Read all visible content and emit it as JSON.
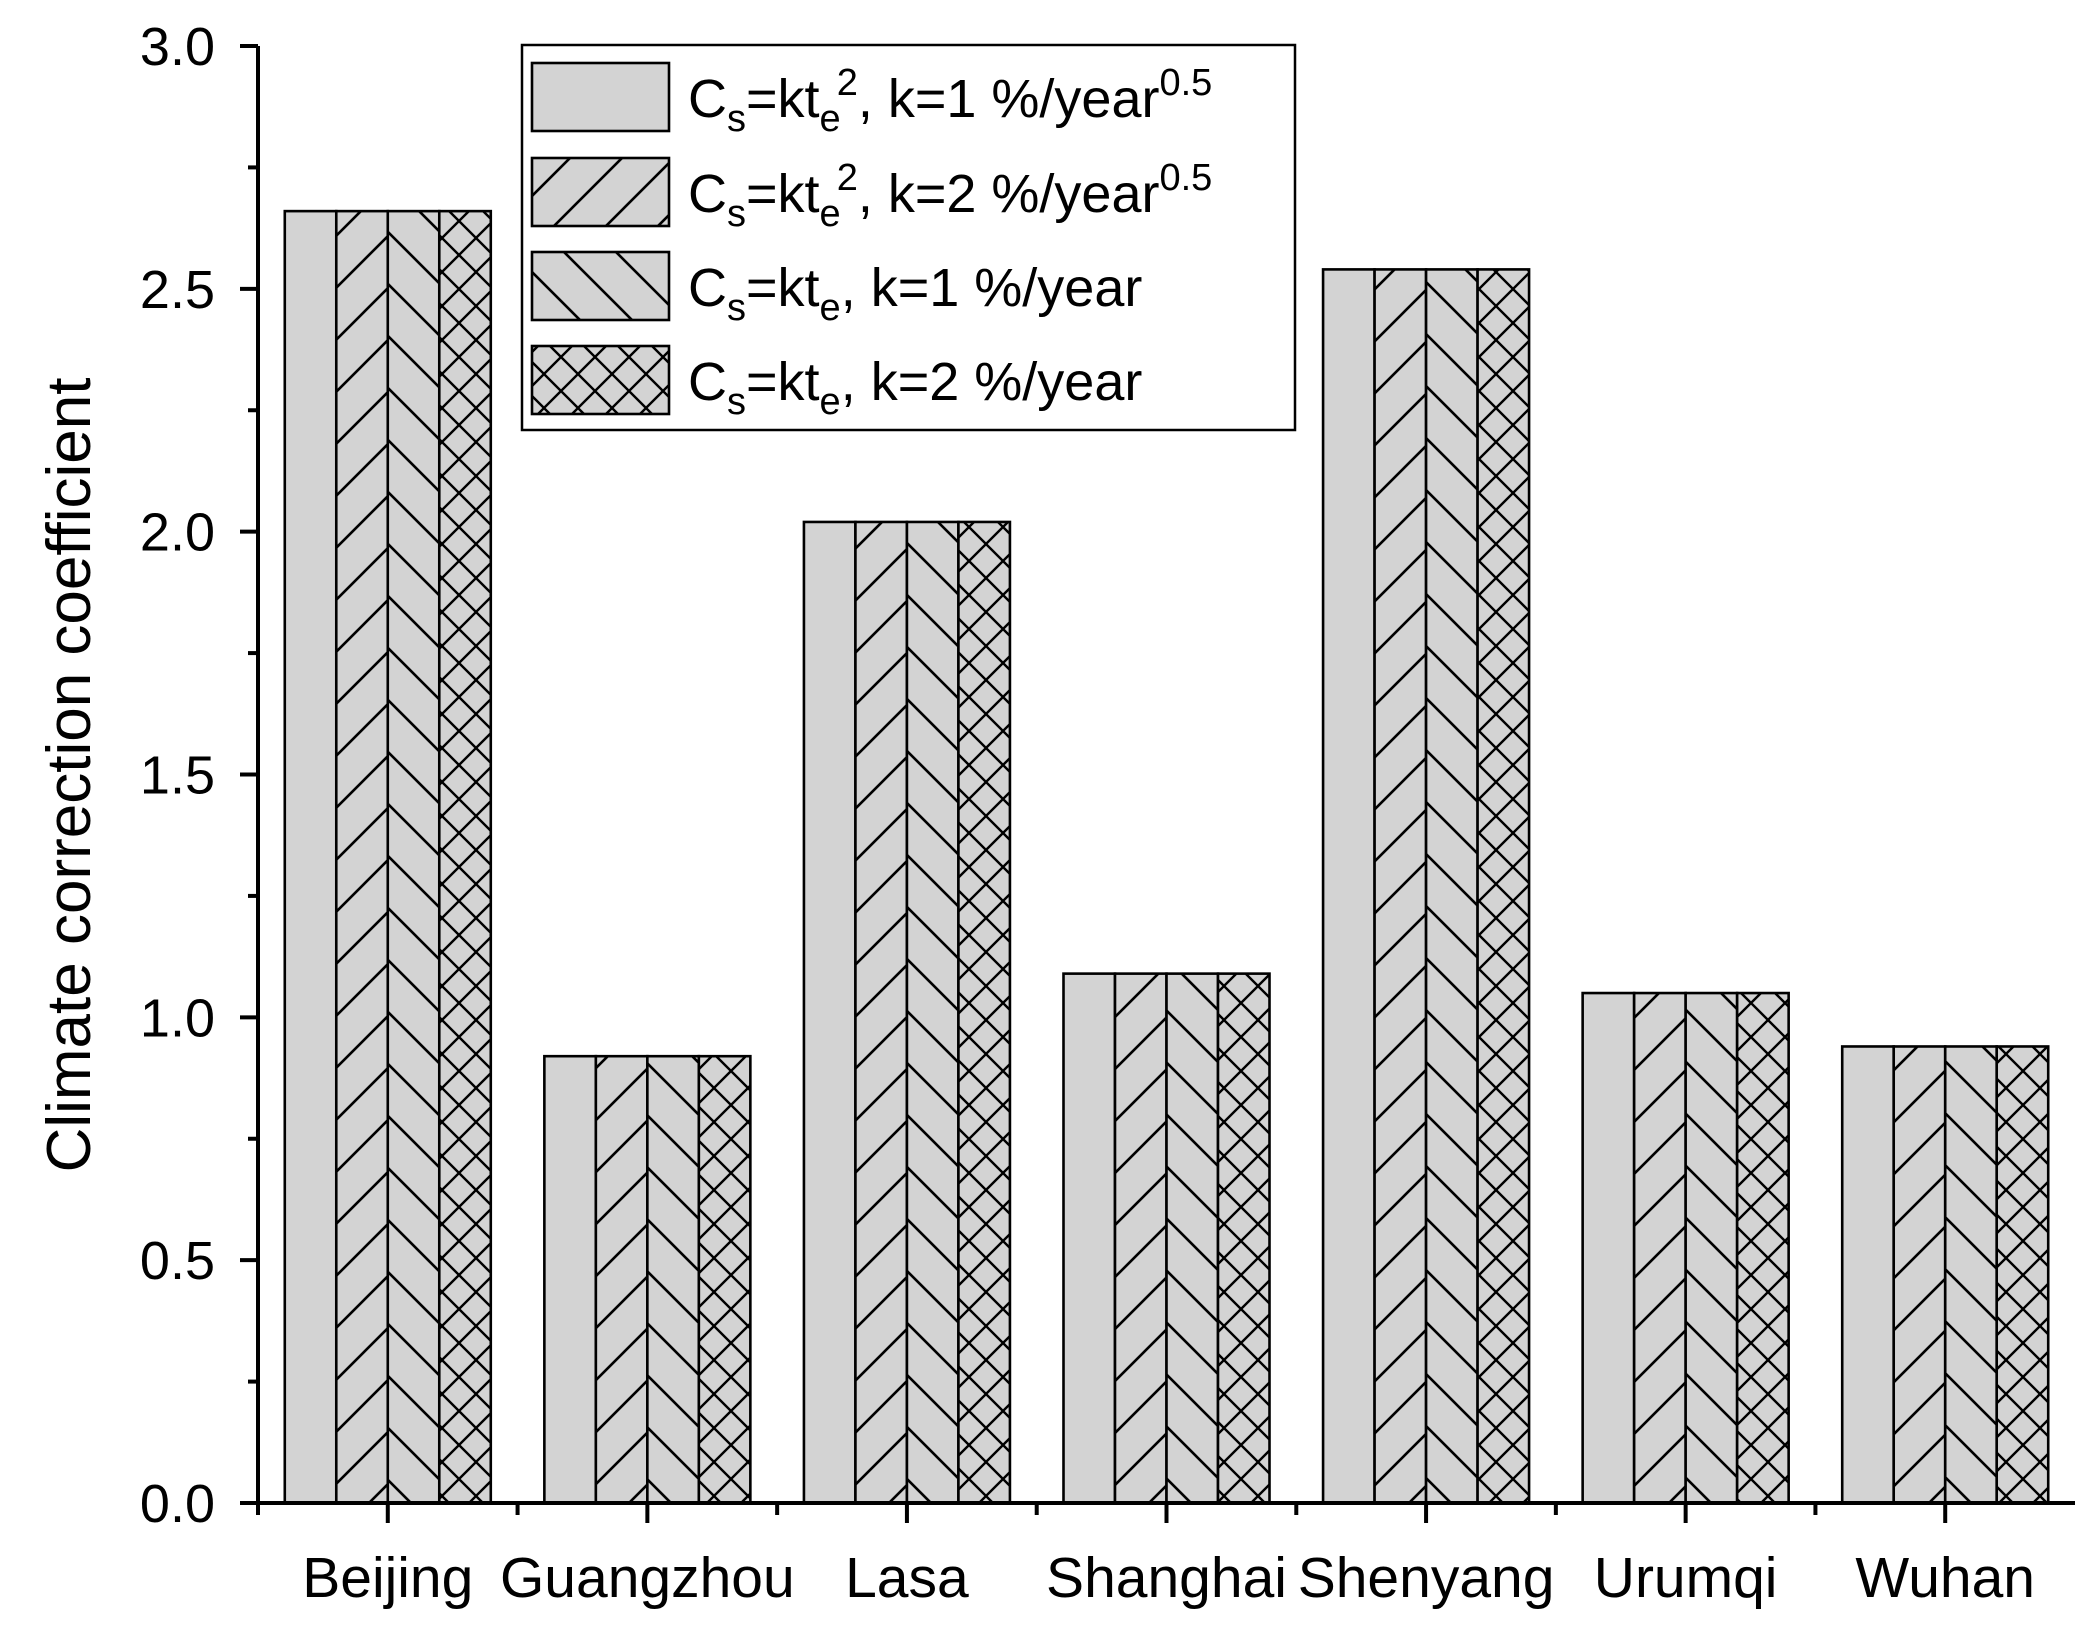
{
  "chart_data": {
    "type": "bar",
    "title": "",
    "xlabel": "",
    "ylabel": "Climate correction coefficient",
    "ylim": [
      0,
      3.0
    ],
    "yticks": [
      "0.0",
      "0.5",
      "1.0",
      "1.5",
      "2.0",
      "2.5",
      "3.0"
    ],
    "categories": [
      "Beijing",
      "Guangzhou",
      "Lasa",
      "Shanghai",
      "Shenyang",
      "Urumqi",
      "Wuhan"
    ],
    "series": [
      {
        "name": "Cs=kte2, k=1 %/year0.5",
        "values": [
          2.66,
          0.92,
          2.02,
          1.09,
          2.54,
          1.05,
          0.94
        ],
        "pattern": "solid"
      },
      {
        "name": "Cs=kte2, k=2 %/year0.5",
        "values": [
          2.66,
          0.92,
          2.02,
          1.09,
          2.54,
          1.05,
          0.94
        ],
        "pattern": "forward-hatch"
      },
      {
        "name": "Cs=kte, k=1 %/year",
        "values": [
          2.66,
          0.92,
          2.02,
          1.09,
          2.54,
          1.05,
          0.94
        ],
        "pattern": "back-hatch"
      },
      {
        "name": "Cs=kte, k=2 %/year",
        "values": [
          2.66,
          0.92,
          2.02,
          1.09,
          2.54,
          1.05,
          0.94
        ],
        "pattern": "cross-hatch"
      }
    ],
    "legend": {
      "placement": "top-center",
      "entries": [
        {
          "parts": [
            [
              "C",
              "n"
            ],
            [
              "s",
              "sub"
            ],
            [
              "=kt",
              "n"
            ],
            [
              "e",
              "sub"
            ],
            [
              "2",
              "sup"
            ],
            [
              ", k=1 %/year",
              "n"
            ],
            [
              "0.5",
              "sup"
            ]
          ]
        },
        {
          "parts": [
            [
              "C",
              "n"
            ],
            [
              "s",
              "sub"
            ],
            [
              "=kt",
              "n"
            ],
            [
              "e",
              "sub"
            ],
            [
              "2",
              "sup"
            ],
            [
              ", k=2 %/year",
              "n"
            ],
            [
              "0.5",
              "sup"
            ]
          ]
        },
        {
          "parts": [
            [
              "C",
              "n"
            ],
            [
              "s",
              "sub"
            ],
            [
              "=kt",
              "n"
            ],
            [
              "e",
              "sub"
            ],
            [
              ", k=1 %/year",
              "n"
            ]
          ]
        },
        {
          "parts": [
            [
              "C",
              "n"
            ],
            [
              "s",
              "sub"
            ],
            [
              "=kt",
              "n"
            ],
            [
              "e",
              "sub"
            ],
            [
              ", k=2 %/year",
              "n"
            ]
          ]
        }
      ]
    },
    "grid": false,
    "bar_fill": "#d3d3d3",
    "line_color": "#000000"
  }
}
